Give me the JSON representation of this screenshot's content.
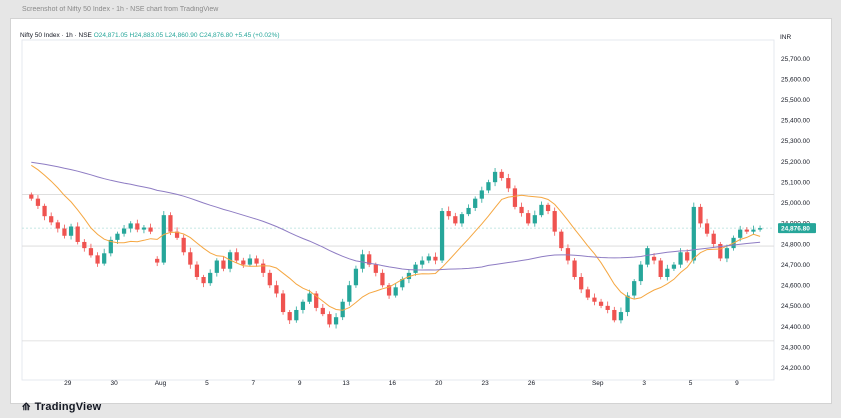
{
  "caption": "Screenshot of Nifty 50 Index - 1h - NSE chart from TradingView",
  "legend": {
    "symbol": "Nifty 50 Index · 1h · NSE",
    "open": "O24,871.05",
    "high": "H24,883.05",
    "low": "L24,860.90",
    "close": "C24,876.80",
    "change": "+5.45 (+0.02%)"
  },
  "currency": "INR",
  "watermark": "TradingView",
  "colors": {
    "up": "#26a69a",
    "down": "#ef5350",
    "ma_fast": "#f5a742",
    "ma_slow": "#8e7cc3",
    "price_tag": "#26a69a"
  },
  "chart_data": {
    "type": "candlestick",
    "symbol": "Nifty 50 Index",
    "interval": "1h",
    "exchange": "NSE",
    "currency": "INR",
    "last_price": "24,876.80",
    "y_ticks": [
      25700,
      25600,
      25500,
      25400,
      25300,
      25200,
      25100,
      25000,
      24900,
      24800,
      24700,
      24600,
      24500,
      24400,
      24300,
      24200
    ],
    "y_tick_labels": [
      "25,700.00",
      "25,600.00",
      "25,500.00",
      "25,400.00",
      "25,300.00",
      "25,200.00",
      "25,100.00",
      "25,000.00",
      "24,900.00",
      "24,800.00",
      "24,700.00",
      "24,600.00",
      "24,500.00",
      "24,400.00",
      "24,300.00",
      "24,200.00"
    ],
    "ylim": [
      24150,
      25780
    ],
    "x_labels": [
      {
        "label": "29",
        "x": 5.5
      },
      {
        "label": "30",
        "x": 12.5
      },
      {
        "label": "Aug",
        "x": 19.5
      },
      {
        "label": "5",
        "x": 26.5
      },
      {
        "label": "7",
        "x": 33.5
      },
      {
        "label": "9",
        "x": 40.5
      },
      {
        "label": "13",
        "x": 47.5
      },
      {
        "label": "16",
        "x": 54.5
      },
      {
        "label": "20",
        "x": 61.5
      },
      {
        "label": "23",
        "x": 68.5
      },
      {
        "label": "26",
        "x": 75.5
      },
      {
        "label": "Sep",
        "x": 85.5
      },
      {
        "label": "3",
        "x": 92.5
      },
      {
        "label": "5",
        "x": 99.5
      },
      {
        "label": "9",
        "x": 106.5
      }
    ],
    "close": [
      25020,
      24985,
      24935,
      24905,
      24875,
      24840,
      24885,
      24810,
      24780,
      24745,
      24705,
      24755,
      24820,
      24850,
      24875,
      24900,
      24870,
      24880,
      24860,
      24710,
      24940,
      24860,
      24830,
      24760,
      24700,
      24640,
      24610,
      24660,
      24720,
      24680,
      24760,
      24720,
      24700,
      24730,
      24705,
      24660,
      24600,
      24560,
      24470,
      24430,
      24480,
      24520,
      24560,
      24490,
      24460,
      24410,
      24445,
      24520,
      24600,
      24680,
      24750,
      24700,
      24660,
      24600,
      24550,
      24590,
      24630,
      24660,
      24700,
      24720,
      24740,
      24720,
      24960,
      24935,
      24900,
      24945,
      24975,
      25020,
      25060,
      25100,
      25150,
      25120,
      25070,
      24980,
      24950,
      24900,
      24940,
      24990,
      24960,
      24860,
      24780,
      24720,
      24640,
      24580,
      24540,
      24520,
      24500,
      24480,
      24430,
      24470,
      24550,
      24620,
      24700,
      24780,
      24720,
      24640,
      24680,
      24700,
      24760,
      24720,
      24980,
      24900,
      24850,
      24800,
      24730,
      24780,
      24830,
      24870,
      24860,
      24870,
      24877
    ],
    "open_first": 25040,
    "gaps": [
      [
        18,
        19
      ],
      [
        60,
        61
      ],
      [
        93,
        94
      ]
    ]
  }
}
